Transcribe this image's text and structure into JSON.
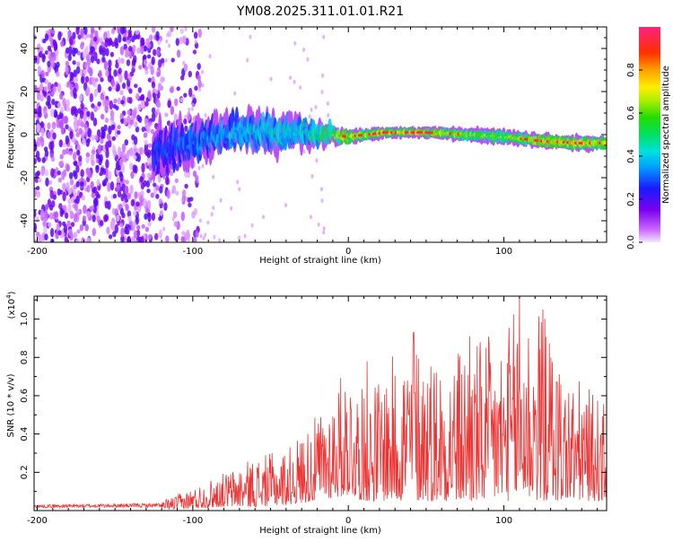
{
  "title": "YM08.2025.311.01.01.R21",
  "chart_data": [
    {
      "type": "heatmap",
      "title": "YM08.2025.311.01.01.R21",
      "xlabel": "Height of straight line (km)",
      "ylabel": "Frequency (Hz)",
      "xlim": [
        -202,
        166
      ],
      "ylim": [
        -50,
        50
      ],
      "xticks": [
        -200,
        -100,
        0,
        100
      ],
      "xtick_labels": [
        "-200",
        "-100",
        "0",
        "100"
      ],
      "yticks": [
        -40,
        -20,
        0,
        20,
        40
      ],
      "ytick_labels": [
        "-40",
        "-20",
        "0",
        "20",
        "40"
      ],
      "colorbar": {
        "label": "Normalized spectral amplitude",
        "range": [
          0,
          1
        ],
        "ticks": [
          0.0,
          0.2,
          0.4,
          0.6,
          0.8
        ],
        "tick_labels": [
          "0.0",
          "0.2",
          "0.4",
          "0.6",
          "0.8"
        ]
      },
      "ridge": {
        "x": [
          -125,
          -100,
          -75,
          -50,
          -25,
          0,
          25,
          50,
          75,
          100,
          125,
          150,
          166
        ],
        "freq_hz": [
          -8,
          -3,
          1,
          1,
          1,
          -1,
          1,
          1,
          0,
          -1,
          -3,
          -4,
          -4
        ],
        "half_width_hz": [
          12,
          10,
          9,
          10,
          7,
          4,
          3,
          3,
          4,
          4,
          4,
          4,
          4
        ],
        "peak_amplitude": [
          0.35,
          0.45,
          0.5,
          0.55,
          0.6,
          0.9,
          0.95,
          0.95,
          0.85,
          0.8,
          0.95,
          0.95,
          0.9
        ]
      },
      "noise_region_x": [
        -202,
        -120
      ]
    },
    {
      "type": "line",
      "xlabel": "Height of straight line (km)",
      "ylabel": "SNR (10 * v/v)",
      "scale_label": "(x10",
      "scale_exponent": "4",
      "scale_close": ")",
      "color": "#ee3333",
      "xlim": [
        -202,
        166
      ],
      "ylim": [
        0,
        1.12
      ],
      "xticks": [
        -200,
        -100,
        0,
        100
      ],
      "xtick_labels": [
        "-200",
        "-100",
        "0",
        "100"
      ],
      "yticks": [
        0.2,
        0.4,
        0.6,
        0.8,
        1.0
      ],
      "ytick_labels": [
        "0.2",
        "0.4",
        "0.6",
        "0.8",
        "1.0"
      ],
      "envelope": {
        "x": [
          -202,
          -120,
          -100,
          -80,
          -60,
          -40,
          -20,
          0,
          10,
          20,
          40,
          60,
          80,
          100,
          110,
          125,
          140,
          150,
          166
        ],
        "max": [
          0.04,
          0.05,
          0.12,
          0.2,
          0.28,
          0.32,
          0.5,
          0.78,
          0.62,
          0.72,
          0.93,
          0.82,
          0.9,
          0.92,
          1.12,
          1.05,
          0.72,
          0.68,
          0.55
        ],
        "min": [
          0.005,
          0.005,
          0.01,
          0.02,
          0.02,
          0.03,
          0.05,
          0.08,
          0.05,
          0.05,
          0.05,
          0.05,
          0.04,
          0.05,
          0.05,
          0.05,
          0.05,
          0.05,
          0.05
        ]
      },
      "notable_peaks": [
        {
          "x": 12,
          "y": 0.78
        },
        {
          "x": 42,
          "y": 0.93
        },
        {
          "x": 78,
          "y": 0.91
        },
        {
          "x": 110,
          "y": 1.12
        },
        {
          "x": 125,
          "y": 1.05
        }
      ]
    }
  ]
}
